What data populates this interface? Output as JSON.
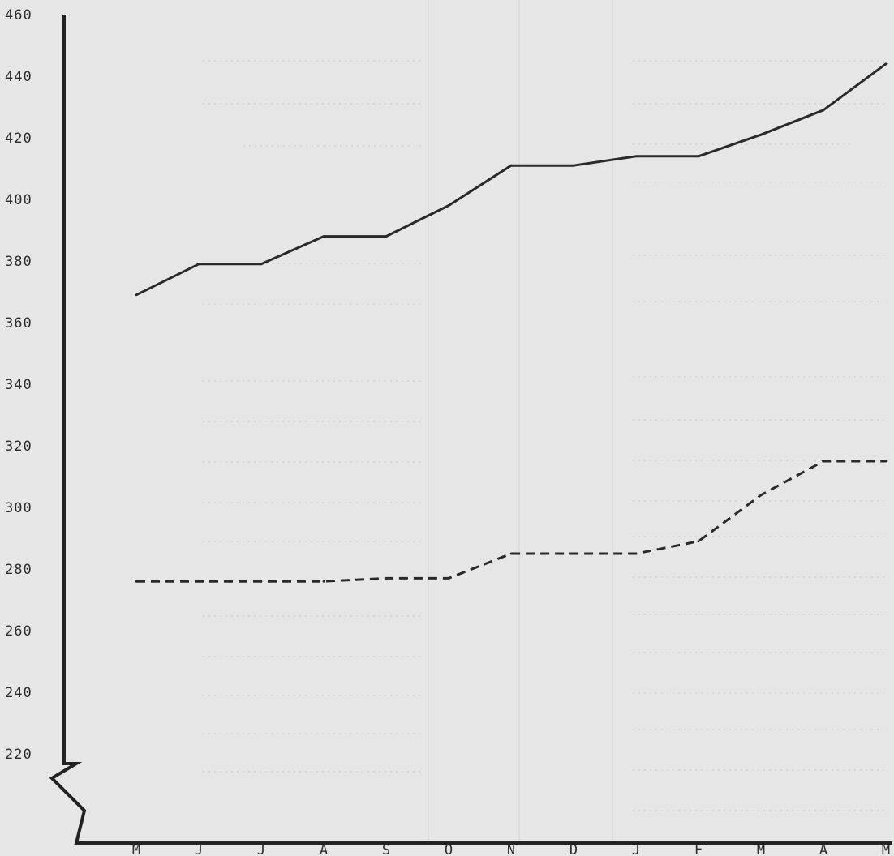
{
  "chart_data": {
    "type": "line",
    "title": "",
    "xlabel": "",
    "ylabel": "",
    "categories": [
      "M",
      "J",
      "J",
      "A",
      "S",
      "O",
      "N",
      "D",
      "J",
      "F",
      "M",
      "A",
      "M"
    ],
    "y_ticks": [
      "460",
      "440",
      "420",
      "400",
      "380",
      "360",
      "340",
      "320",
      "300",
      "280",
      "260",
      "240",
      "220"
    ],
    "ylim": [
      210,
      460
    ],
    "axis_break": true,
    "grid": false,
    "legend": "none",
    "series": [
      {
        "style": "solid",
        "values": [
          369,
          379,
          379,
          388,
          388,
          398,
          411,
          411,
          414,
          414,
          421,
          429,
          444
        ]
      },
      {
        "style": "dashed",
        "values": [
          276,
          276,
          276,
          276,
          277,
          277,
          285,
          285,
          285,
          289,
          304,
          315,
          315
        ]
      }
    ]
  }
}
